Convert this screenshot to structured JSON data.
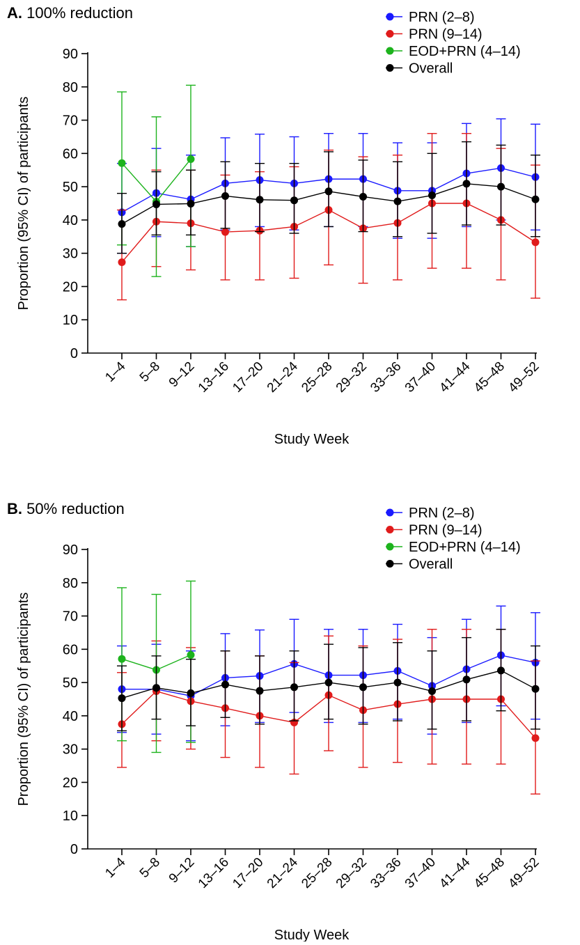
{
  "chart_data": [
    {
      "type": "line",
      "panel_letter": "A.",
      "title": "100% reduction",
      "xlabel": "Study Week",
      "ylabel": "Proportion (95% CI) of participants",
      "ylim": [
        0,
        90
      ],
      "yticks": [
        0,
        10,
        20,
        30,
        40,
        50,
        60,
        70,
        80,
        90
      ],
      "categories": [
        "1–4",
        "5–8",
        "9–12",
        "13–16",
        "17–20",
        "21–24",
        "25–28",
        "29–32",
        "33–36",
        "37–40",
        "41–44",
        "45–48",
        "49–52"
      ],
      "legend_position": "top-right",
      "error_bars": true,
      "series": [
        {
          "name": "PRN (2–8)",
          "color": "#1a1aff",
          "values": [
            42.3,
            48.1,
            46.2,
            51.0,
            52.0,
            51.0,
            52.3,
            52.3,
            48.8,
            48.8,
            54.0,
            55.6,
            52.9
          ],
          "lower": [
            30.0,
            35.0,
            32.0,
            37.0,
            38.0,
            37.0,
            38.0,
            38.0,
            34.5,
            34.5,
            38.0,
            40.0,
            37.0
          ],
          "upper": [
            57.0,
            61.5,
            59.5,
            64.7,
            65.8,
            65.0,
            66.0,
            66.0,
            63.2,
            63.2,
            69.0,
            70.4,
            68.8
          ]
        },
        {
          "name": "PRN (9–14)",
          "color": "#e01b1b",
          "values": [
            27.3,
            39.5,
            39.0,
            36.4,
            36.8,
            38.0,
            43.0,
            37.5,
            39.1,
            45.0,
            45.0,
            40.0,
            33.3
          ],
          "lower": [
            16.0,
            26.0,
            25.0,
            22.0,
            22.0,
            22.5,
            26.5,
            21.0,
            22.0,
            25.5,
            25.5,
            22.0,
            16.5
          ],
          "upper": [
            43.0,
            55.0,
            55.0,
            53.5,
            54.5,
            56.0,
            61.0,
            59.0,
            59.5,
            66.0,
            66.0,
            61.5,
            56.5
          ]
        },
        {
          "name": "EOD+PRN (4–14)",
          "color": "#1db31d",
          "values": [
            57.1,
            45.5,
            58.3,
            null,
            null,
            null,
            null,
            null,
            null,
            null,
            null,
            null,
            null
          ],
          "lower": [
            32.5,
            23.0,
            32.0,
            null,
            null,
            null,
            null,
            null,
            null,
            null,
            null,
            null,
            null
          ],
          "upper": [
            78.5,
            71.0,
            80.5,
            null,
            null,
            null,
            null,
            null,
            null,
            null,
            null,
            null,
            null
          ]
        },
        {
          "name": "Overall",
          "color": "#000000",
          "values": [
            38.8,
            44.7,
            44.9,
            47.2,
            46.1,
            45.9,
            48.6,
            47.0,
            45.6,
            47.4,
            50.9,
            50.0,
            46.2
          ],
          "lower": [
            30.0,
            35.5,
            35.5,
            37.5,
            36.5,
            36.0,
            38.0,
            36.5,
            35.0,
            36.0,
            38.5,
            38.5,
            35.0
          ],
          "upper": [
            48.0,
            54.5,
            55.0,
            57.5,
            57.0,
            57.0,
            60.5,
            58.0,
            57.5,
            60.0,
            63.5,
            62.5,
            59.5
          ]
        }
      ]
    },
    {
      "type": "line",
      "panel_letter": "B.",
      "title": "50% reduction",
      "xlabel": "Study Week",
      "ylabel": "Proportion (95% CI) of participants",
      "ylim": [
        0,
        90
      ],
      "yticks": [
        0,
        10,
        20,
        30,
        40,
        50,
        60,
        70,
        80,
        90
      ],
      "categories": [
        "1–4",
        "5–8",
        "9–12",
        "13–16",
        "17–20",
        "21–24",
        "25–28",
        "29–32",
        "33–36",
        "37–40",
        "41–44",
        "45–48",
        "49–52"
      ],
      "legend_position": "top-right",
      "error_bars": true,
      "series": [
        {
          "name": "PRN (2–8)",
          "color": "#1a1aff",
          "values": [
            48.0,
            48.0,
            46.0,
            51.4,
            52.0,
            55.6,
            52.2,
            52.2,
            53.5,
            49.0,
            54.0,
            58.2,
            56.0
          ],
          "lower": [
            35.0,
            34.5,
            32.5,
            37.0,
            38.0,
            41.0,
            38.0,
            38.0,
            39.0,
            34.5,
            38.0,
            43.0,
            39.0
          ],
          "upper": [
            61.0,
            61.5,
            59.5,
            64.7,
            65.8,
            69.0,
            66.0,
            66.0,
            67.5,
            63.5,
            69.0,
            73.0,
            71.0
          ]
        },
        {
          "name": "PRN (9–14)",
          "color": "#e01b1b",
          "values": [
            37.5,
            47.4,
            44.4,
            42.3,
            40.0,
            38.0,
            46.2,
            41.7,
            43.5,
            45.0,
            45.0,
            45.0,
            33.3
          ],
          "lower": [
            24.5,
            32.5,
            30.0,
            27.5,
            24.5,
            22.5,
            29.5,
            24.5,
            26.0,
            25.5,
            25.5,
            25.5,
            16.5
          ],
          "upper": [
            53.0,
            62.5,
            60.5,
            59.5,
            58.0,
            56.0,
            64.0,
            61.0,
            63.0,
            66.0,
            66.0,
            66.0,
            56.5
          ]
        },
        {
          "name": "EOD+PRN (4–14)",
          "color": "#1db31d",
          "values": [
            57.1,
            53.8,
            58.3,
            null,
            null,
            null,
            null,
            null,
            null,
            null,
            null,
            null,
            null
          ],
          "lower": [
            32.5,
            29.0,
            32.0,
            null,
            null,
            null,
            null,
            null,
            null,
            null,
            null,
            null,
            null
          ],
          "upper": [
            78.5,
            76.5,
            80.5,
            null,
            null,
            null,
            null,
            null,
            null,
            null,
            null,
            null,
            null
          ]
        },
        {
          "name": "Overall",
          "color": "#000000",
          "values": [
            45.3,
            48.4,
            46.8,
            49.4,
            47.5,
            48.6,
            50.0,
            48.6,
            50.0,
            47.4,
            50.9,
            53.6,
            48.1
          ],
          "lower": [
            35.5,
            39.0,
            37.0,
            39.5,
            37.5,
            38.5,
            39.0,
            37.5,
            38.5,
            36.0,
            38.5,
            41.5,
            36.0
          ],
          "upper": [
            55.0,
            58.0,
            57.0,
            59.5,
            58.0,
            59.5,
            61.5,
            60.5,
            62.0,
            59.5,
            63.5,
            66.0,
            61.0
          ]
        }
      ]
    }
  ]
}
